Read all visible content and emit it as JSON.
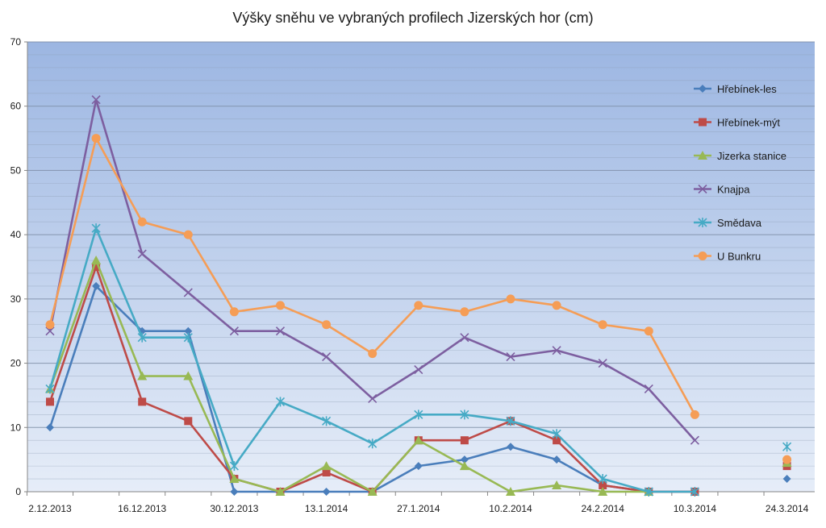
{
  "chart_data": {
    "type": "line",
    "title": "Výšky sněhu ve vybraných profilech Jizerských hor (cm)",
    "xlabel": "",
    "ylabel": "",
    "ylim": [
      0,
      70
    ],
    "y_ticks": [
      0,
      10,
      20,
      30,
      40,
      50,
      60,
      70
    ],
    "x": [
      "2.12.2013",
      "9.12.2013",
      "16.12.2013",
      "23.12.2013",
      "30.12.2013",
      "6.1.2014",
      "13.1.2014",
      "20.1.2014",
      "27.1.2014",
      "3.2.2014",
      "10.2.2014",
      "17.2.2014",
      "24.2.2014",
      "3.3.2014",
      "10.3.2014",
      "17.3.2014",
      "24.3.2014"
    ],
    "x_tick_labels": [
      "2.12.2013",
      "",
      "16.12.2013",
      "",
      "30.12.2013",
      "",
      "13.1.2014",
      "",
      "27.1.2014",
      "",
      "10.2.2014",
      "",
      "24.2.2014",
      "",
      "10.3.2014",
      "",
      "24.3.2014"
    ],
    "grid": true,
    "legend_position": "right",
    "plot_background": [
      "#9cb6e2",
      "#e6edf8"
    ],
    "series": [
      {
        "name": "Hřebínek-les",
        "color": "#4a7ebb",
        "marker": "diamond",
        "values": [
          10,
          32,
          25,
          25,
          0,
          0,
          0,
          0,
          4,
          5,
          7,
          5,
          1,
          0,
          0,
          null,
          2
        ]
      },
      {
        "name": "Hřebínek-mýt",
        "color": "#be4b48",
        "marker": "square",
        "values": [
          14,
          35,
          14,
          11,
          2,
          0,
          3,
          0,
          8,
          8,
          11,
          8,
          1,
          0,
          0,
          null,
          4
        ]
      },
      {
        "name": "Jizerka stanice",
        "color": "#98b954",
        "marker": "triangle",
        "values": [
          16,
          36,
          18,
          18,
          2,
          0,
          4,
          0,
          8,
          4,
          0,
          1,
          0,
          0,
          null,
          null,
          4.5
        ]
      },
      {
        "name": "Knajpa",
        "color": "#7d5fa0",
        "marker": "x",
        "values": [
          25,
          61,
          37,
          31,
          25,
          25,
          21,
          14.5,
          19,
          24,
          21,
          22,
          20,
          16,
          8,
          null,
          null
        ]
      },
      {
        "name": "Smědava",
        "color": "#46aac5",
        "marker": "asterisk",
        "values": [
          16,
          41,
          24,
          24,
          4,
          14,
          11,
          7.5,
          12,
          12,
          11,
          9,
          2,
          0,
          0,
          null,
          7
        ]
      },
      {
        "name": "U Bunkru",
        "color": "#f59d56",
        "marker": "circle",
        "values": [
          26,
          55,
          42,
          40,
          28,
          29,
          26,
          21.5,
          29,
          28,
          30,
          29,
          26,
          25,
          12,
          null,
          5
        ]
      }
    ]
  }
}
